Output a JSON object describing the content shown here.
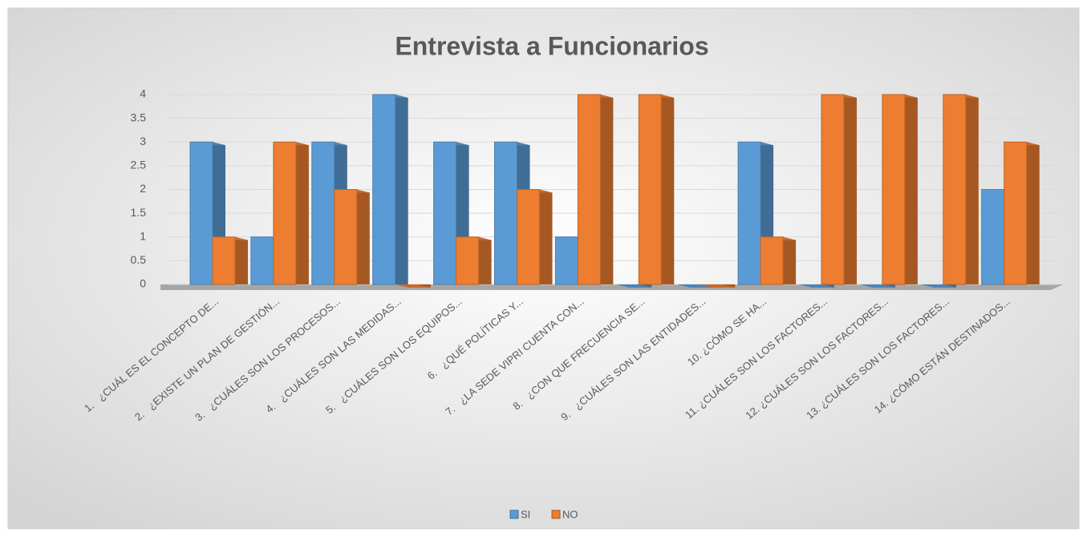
{
  "chart_data": {
    "type": "bar3d",
    "title": "Entrevista a Funcionarios",
    "categories": [
      "1.   ¿CUÁL ES EL CONCEPTO DE...",
      "2.   ¿EXISTE UN PLAN DE GESTIÓN...",
      "3.   ¿CUÁLES SON LOS PROCESOS...",
      "4.   ¿CUÁLES SON LAS MEDIDAS...",
      "5.   ¿CUÁLES SON LOS EQUIPOS...",
      "6.   ¿QUÉ POLÍTICAS Y...",
      "7.   ¿LA SEDE VIPRI CUENTA CON...",
      "8.   ¿CON QUE FRECUENCIA SE...",
      "9.   ¿CUÁLES SON LAS ENTIDADES...",
      "10. ¿CÓMO SE HA...",
      "11. ¿CUÁLES SON LOS FACTORES...",
      "12. ¿CUÁLES SON LOS FACTORES...",
      "13. ¿CUÁLES SON LOS FACTORES...",
      "14. ¿CÓMO ESTÁN DESTINADOS..."
    ],
    "series": [
      {
        "name": "SI",
        "color": "#5b9bd5",
        "values": [
          3,
          1,
          3,
          4,
          3,
          3,
          1,
          0,
          0,
          3,
          0,
          0,
          0,
          2
        ]
      },
      {
        "name": "NO",
        "color": "#ed7d31",
        "values": [
          1,
          3,
          2,
          0,
          1,
          2,
          4,
          4,
          0,
          1,
          4,
          4,
          4,
          3
        ]
      }
    ],
    "ylim": [
      0,
      4
    ],
    "yticks": [
      0,
      0.5,
      1,
      1.5,
      2,
      2.5,
      3,
      3.5,
      4
    ],
    "grid": true,
    "legend": "bottom"
  }
}
